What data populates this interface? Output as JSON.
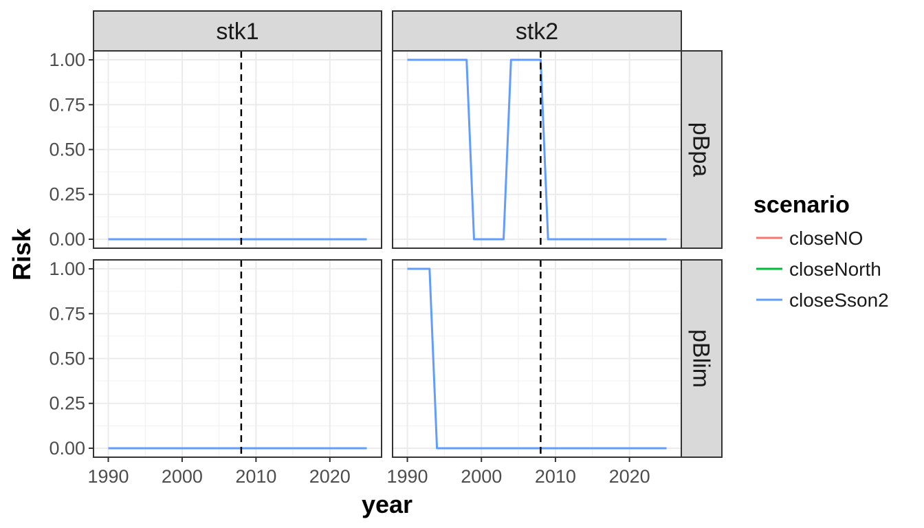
{
  "chart_data": {
    "type": "line",
    "xlabel": "year",
    "ylabel": "Risk",
    "xlim": [
      1988,
      2027
    ],
    "ylim": [
      -0.05,
      1.05
    ],
    "x_ticks": [
      1990,
      2000,
      2010,
      2020
    ],
    "y_ticks": [
      0,
      0.25,
      0.5,
      0.75,
      1
    ],
    "y_tick_labels": [
      "0.00",
      "0.25",
      "0.50",
      "0.75",
      "1.00"
    ],
    "reference_line_x": 2008,
    "grid": true,
    "legend": {
      "title": "scenario",
      "position": "right",
      "entries": [
        {
          "name": "closeNO",
          "color": "#F8766D"
        },
        {
          "name": "closeNorth",
          "color": "#00BA38"
        },
        {
          "name": "closeSson2",
          "color": "#619CFF"
        }
      ]
    },
    "col_strips": [
      "stk1",
      "stk2"
    ],
    "row_strips": [
      "pBpa",
      "pBlim"
    ],
    "panels": [
      {
        "col": "stk1",
        "row": "pBpa",
        "series": [
          {
            "name": "closeSson2",
            "x": [
              1990,
              2025
            ],
            "y": [
              0,
              0
            ]
          }
        ]
      },
      {
        "col": "stk2",
        "row": "pBpa",
        "series": [
          {
            "name": "closeSson2",
            "x": [
              1990,
              1998,
              1999,
              2003,
              2004,
              2008,
              2009,
              2025
            ],
            "y": [
              1,
              1,
              0,
              0,
              1,
              1,
              0,
              0
            ]
          }
        ]
      },
      {
        "col": "stk1",
        "row": "pBlim",
        "series": [
          {
            "name": "closeSson2",
            "x": [
              1990,
              2025
            ],
            "y": [
              0,
              0
            ]
          }
        ]
      },
      {
        "col": "stk2",
        "row": "pBlim",
        "series": [
          {
            "name": "closeSson2",
            "x": [
              1990,
              1993,
              1994,
              2025
            ],
            "y": [
              1,
              1,
              0,
              0
            ]
          }
        ]
      }
    ]
  }
}
